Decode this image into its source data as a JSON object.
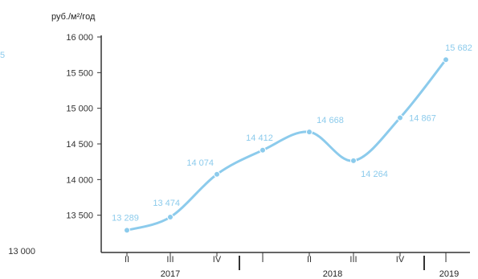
{
  "chart_data": {
    "type": "line",
    "unit_label": "руб./м²/год",
    "y_ticks": [
      "16 000",
      "15 500",
      "15 000",
      "14 500",
      "14 000",
      "13 500",
      "13 000"
    ],
    "y_tick_values": [
      16000,
      15500,
      15000,
      14500,
      14000,
      13500,
      13000
    ],
    "ylim": [
      13000,
      16000
    ],
    "categories": [
      "II",
      "III",
      "IV",
      "I",
      "II",
      "III",
      "IV",
      "I"
    ],
    "years": [
      {
        "label": "2017"
      },
      {
        "label": "2018"
      },
      {
        "label": "2019"
      }
    ],
    "series": [
      {
        "values": [
          13289,
          13474,
          14074,
          14412,
          14668,
          14264,
          14867,
          15682
        ],
        "labels": [
          "13 289",
          "13 474",
          "14 074",
          "14 412",
          "14 668",
          "14 264",
          "14 867",
          "15 682"
        ]
      }
    ],
    "colors": {
      "line": "#8ccbec",
      "marker": "#8ccbec",
      "label": "#8ccbec",
      "axis": "#333333"
    },
    "grid": false,
    "legend": "none",
    "left_edge_mark": "5"
  }
}
